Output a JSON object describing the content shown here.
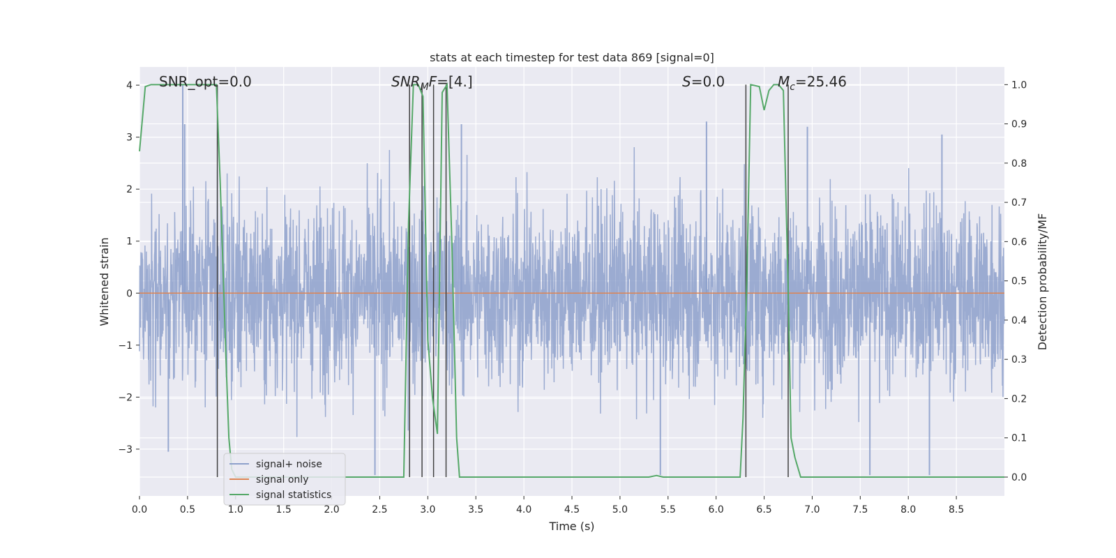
{
  "chart_data": {
    "type": "line",
    "title": "stats at each timestep for test data 869 [signal=0]",
    "xlabel": "Time (s)",
    "ylabel_left": "Whitened strain",
    "ylabel_right": "Detection probability/MF",
    "xlim": [
      0,
      9.0
    ],
    "ylim_left": [
      -3.9,
      4.35
    ],
    "ylim_right": [
      -0.048,
      1.045
    ],
    "x_ticks": [
      "0.0",
      "0.5",
      "1.0",
      "1.5",
      "2.0",
      "2.5",
      "3.0",
      "3.5",
      "4.0",
      "4.5",
      "5.0",
      "5.5",
      "6.0",
      "6.5",
      "7.0",
      "7.5",
      "8.0",
      "8.5"
    ],
    "y_ticks_left": [
      "4",
      "3",
      "2",
      "1",
      "0",
      "−1",
      "−2",
      "−3"
    ],
    "y_ticks_right": [
      "1.0",
      "0.9",
      "0.8",
      "0.7",
      "0.6",
      "0.5",
      "0.4",
      "0.3",
      "0.2",
      "0.1",
      "0.0"
    ],
    "grid": true,
    "background": "#eaeaf2",
    "annotations": [
      {
        "parts": [
          {
            "text": "SNR_opt=0.0",
            "style": "normal"
          }
        ]
      },
      {
        "parts": [
          {
            "text": "SNR",
            "style": "italic"
          },
          {
            "text": "M",
            "style": "italic-sub"
          },
          {
            "text": "F",
            "style": "italic"
          },
          {
            "text": "=[4.]",
            "style": "normal"
          }
        ]
      },
      {
        "parts": [
          {
            "text": "S",
            "style": "italic"
          },
          {
            "text": "=0.0",
            "style": "normal"
          }
        ]
      },
      {
        "parts": [
          {
            "text": "M",
            "style": "italic"
          },
          {
            "text": "c",
            "style": "italic-sub"
          },
          {
            "text": "=25.46",
            "style": "normal"
          }
        ]
      }
    ],
    "legend": {
      "placement": "lower-left",
      "entries": [
        {
          "label": "signal+ noise",
          "color": "#8da0cb"
        },
        {
          "label": "signal only",
          "color": "#dd8452"
        },
        {
          "label": "signal statistics",
          "color": "#55a868"
        }
      ]
    },
    "series": [
      {
        "name": "signal+ noise",
        "axis": "left",
        "color": "#8da0cb",
        "kind": "noise",
        "description_envelope": {
          "typical_abs": 1.3,
          "max": 4.0,
          "min": -3.5
        },
        "spikes": [
          {
            "x": 0.45,
            "y": 4.0
          },
          {
            "x": 0.47,
            "y": 3.25
          },
          {
            "x": 0.3,
            "y": -3.05
          },
          {
            "x": 2.45,
            "y": -3.5
          },
          {
            "x": 5.42,
            "y": -3.5
          },
          {
            "x": 7.6,
            "y": -3.5
          },
          {
            "x": 8.22,
            "y": -3.5
          },
          {
            "x": 3.35,
            "y": 3.25
          },
          {
            "x": 5.9,
            "y": 3.3
          },
          {
            "x": 8.35,
            "y": 3.05
          },
          {
            "x": 6.95,
            "y": 3.2
          }
        ]
      },
      {
        "name": "signal only",
        "axis": "left",
        "color": "#dd8452",
        "x": [
          0.0,
          9.0
        ],
        "y": [
          0.0,
          0.0
        ]
      },
      {
        "name": "signal statistics",
        "axis": "right",
        "color": "#55a868",
        "x": [
          0.0,
          0.06,
          0.12,
          0.8,
          0.84,
          0.9,
          0.93,
          0.96,
          1.0,
          2.75,
          2.8,
          2.85,
          2.9,
          2.95,
          3.0,
          3.05,
          3.1,
          3.15,
          3.2,
          3.25,
          3.3,
          3.33,
          3.5,
          5.3,
          5.38,
          5.45,
          6.25,
          6.28,
          6.32,
          6.36,
          6.45,
          6.5,
          6.55,
          6.6,
          6.65,
          6.7,
          6.75,
          6.78,
          6.82,
          6.88,
          9.0
        ],
        "y": [
          0.83,
          0.995,
          1.0,
          1.0,
          0.75,
          0.3,
          0.1,
          0.02,
          0.0,
          0.0,
          0.65,
          1.0,
          1.0,
          0.97,
          0.35,
          0.2,
          0.11,
          0.98,
          1.0,
          0.6,
          0.1,
          0.0,
          0.0,
          0.0,
          0.004,
          0.0,
          0.0,
          0.15,
          0.5,
          1.0,
          0.995,
          0.935,
          0.985,
          1.0,
          1.0,
          0.985,
          0.48,
          0.1,
          0.05,
          0.0,
          0.0
        ]
      }
    ],
    "vertical_lines": {
      "color": "#404040",
      "x": [
        0.81,
        2.81,
        2.94,
        3.06,
        3.19,
        6.31,
        6.75
      ]
    }
  }
}
